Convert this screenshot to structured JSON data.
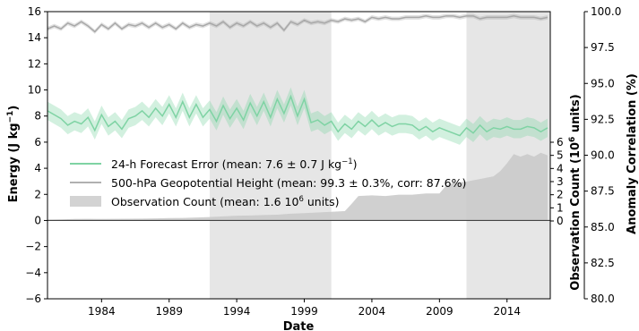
{
  "chart_data": {
    "type": "line",
    "xlabel": "Date",
    "ylabel_left": "Energy (J kg",
    "ylabel_left_sup": "−1",
    "ylabel_left_end": ")",
    "ylabel_right_corr": "Anomaly Correlation (%)",
    "ylabel_right_obs": "Observation Count (10",
    "ylabel_right_obs_sup": "6",
    "ylabel_right_obs_end": " units)",
    "xlim": [
      1980.0,
      2017.2
    ],
    "ylim_left": [
      -6,
      16
    ],
    "ylim_right_corr": [
      80,
      100
    ],
    "ylim_right_obs": [
      0,
      6
    ],
    "x_ticks": [
      1984,
      1989,
      1994,
      1999,
      2004,
      2009,
      2014
    ],
    "y_ticks_left": [
      -6,
      -4,
      -2,
      0,
      2,
      4,
      6,
      8,
      10,
      12,
      14,
      16
    ],
    "y_ticks_right_corr": [
      "80.0",
      "82.5",
      "85.0",
      "87.5",
      "90.0",
      "92.5",
      "95.0",
      "97.5",
      "100.0"
    ],
    "y_ticks_right_obs": [
      0,
      1,
      2,
      3,
      4,
      5,
      6
    ],
    "shaded_periods": [
      [
        1992.0,
        2001.0
      ],
      [
        2011.0,
        2017.2
      ]
    ],
    "zero_line": 0,
    "legend": {
      "placement": "center-left",
      "entries": [
        {
          "label": "24-h Forecast Error (mean: 7.6 ± 0.7 J kg",
          "sup": "−1",
          "end": ")",
          "color": "#7fd3a4"
        },
        {
          "label": "500-hPa Geopotential Height (mean: 99.3 ± 0.3%, corr: 87.6%)",
          "sup": "",
          "end": "",
          "color": "#b0b0b0"
        },
        {
          "label": "Observation Count (mean: 1.6 10",
          "sup": "6",
          "end": " units)",
          "color": "#d3d3d3"
        }
      ]
    },
    "series": [
      {
        "name": "24-h Forecast Error",
        "axis": "left",
        "color": "#7fd3a4",
        "x": [
          1980.0,
          1980.5,
          1981.0,
          1981.5,
          1982.0,
          1982.5,
          1983.0,
          1983.5,
          1984.0,
          1984.5,
          1985.0,
          1985.5,
          1986.0,
          1986.5,
          1987.0,
          1987.5,
          1988.0,
          1988.5,
          1989.0,
          1989.5,
          1990.0,
          1990.5,
          1991.0,
          1991.5,
          1992.0,
          1992.5,
          1993.0,
          1993.5,
          1994.0,
          1994.5,
          1995.0,
          1995.5,
          1996.0,
          1996.5,
          1997.0,
          1997.5,
          1998.0,
          1998.5,
          1999.0,
          1999.5,
          2000.0,
          2000.5,
          2001.0,
          2001.5,
          2002.0,
          2002.5,
          2003.0,
          2003.5,
          2004.0,
          2004.5,
          2005.0,
          2005.5,
          2006.0,
          2006.5,
          2007.0,
          2007.5,
          2008.0,
          2008.5,
          2009.0,
          2009.5,
          2010.0,
          2010.5,
          2011.0,
          2011.5,
          2012.0,
          2012.5,
          2013.0,
          2013.5,
          2014.0,
          2014.5,
          2015.0,
          2015.5,
          2016.0,
          2016.5,
          2017.0
        ],
        "y": [
          8.4,
          8.1,
          7.8,
          7.3,
          7.6,
          7.4,
          7.9,
          6.9,
          8.1,
          7.2,
          7.6,
          7.0,
          7.8,
          8.0,
          8.4,
          7.9,
          8.6,
          8.0,
          8.9,
          7.9,
          9.1,
          7.9,
          8.9,
          7.9,
          8.5,
          7.6,
          8.8,
          7.8,
          8.6,
          7.7,
          9.0,
          8.0,
          9.1,
          7.9,
          9.3,
          8.2,
          9.5,
          8.0,
          9.3,
          7.5,
          7.7,
          7.3,
          7.6,
          6.8,
          7.4,
          7.0,
          7.6,
          7.2,
          7.7,
          7.2,
          7.5,
          7.2,
          7.4,
          7.4,
          7.3,
          6.9,
          7.2,
          6.8,
          7.1,
          6.9,
          6.7,
          6.5,
          7.1,
          6.7,
          7.3,
          6.8,
          7.1,
          7.0,
          7.2,
          7.0,
          7.0,
          7.2,
          7.1,
          6.8,
          7.1
        ],
        "band": 0.7
      },
      {
        "name": "500-hPa Geopotential Height",
        "axis": "right_corr",
        "color": "#a8a8a8",
        "x": [
          1980.0,
          1980.5,
          1981.0,
          1981.5,
          1982.0,
          1982.5,
          1983.0,
          1983.5,
          1984.0,
          1984.5,
          1985.0,
          1985.5,
          1986.0,
          1986.5,
          1987.0,
          1987.5,
          1988.0,
          1988.5,
          1989.0,
          1989.5,
          1990.0,
          1990.5,
          1991.0,
          1991.5,
          1992.0,
          1992.5,
          1993.0,
          1993.5,
          1994.0,
          1994.5,
          1995.0,
          1995.5,
          1996.0,
          1996.5,
          1997.0,
          1997.5,
          1998.0,
          1998.5,
          1999.0,
          1999.5,
          2000.0,
          2000.5,
          2001.0,
          2001.5,
          2002.0,
          2002.5,
          2003.0,
          2003.5,
          2004.0,
          2004.5,
          2005.0,
          2005.5,
          2006.0,
          2006.5,
          2007.0,
          2007.5,
          2008.0,
          2008.5,
          2009.0,
          2009.5,
          2010.0,
          2010.5,
          2011.0,
          2011.5,
          2012.0,
          2012.5,
          2013.0,
          2013.5,
          2014.0,
          2014.5,
          2015.0,
          2015.5,
          2016.0,
          2016.5,
          2017.0
        ],
        "y": [
          98.8,
          99.0,
          98.8,
          99.2,
          99.0,
          99.3,
          99.0,
          98.6,
          99.1,
          98.8,
          99.2,
          98.8,
          99.1,
          99.0,
          99.2,
          98.9,
          99.2,
          98.9,
          99.1,
          98.8,
          99.2,
          98.9,
          99.1,
          99.0,
          99.2,
          99.0,
          99.3,
          98.9,
          99.2,
          99.0,
          99.3,
          99.0,
          99.2,
          98.9,
          99.2,
          98.7,
          99.3,
          99.1,
          99.4,
          99.2,
          99.3,
          99.2,
          99.4,
          99.3,
          99.5,
          99.4,
          99.5,
          99.3,
          99.6,
          99.5,
          99.6,
          99.5,
          99.5,
          99.6,
          99.6,
          99.6,
          99.7,
          99.6,
          99.6,
          99.7,
          99.7,
          99.6,
          99.7,
          99.7,
          99.5,
          99.6,
          99.6,
          99.6,
          99.6,
          99.7,
          99.6,
          99.6,
          99.6,
          99.5,
          99.6
        ],
        "band": 0.15
      },
      {
        "name": "Observation Count",
        "axis": "right_obs",
        "type": "area",
        "color": "#c8c8c8",
        "x": [
          1980.0,
          1981.0,
          1982.0,
          1983.0,
          1984.0,
          1985.0,
          1986.0,
          1987.0,
          1988.0,
          1989.0,
          1990.0,
          1991.0,
          1992.0,
          1993.0,
          1994.0,
          1995.0,
          1996.0,
          1997.0,
          1998.0,
          1999.0,
          2000.0,
          2001.0,
          2002.0,
          2002.5,
          2003.0,
          2004.0,
          2005.0,
          2006.0,
          2007.0,
          2008.0,
          2009.0,
          2009.5,
          2010.0,
          2011.0,
          2012.0,
          2013.0,
          2013.5,
          2014.0,
          2014.5,
          2015.0,
          2015.5,
          2016.0,
          2016.5,
          2017.0
        ],
        "y": [
          0.1,
          0.12,
          0.15,
          0.16,
          0.15,
          0.16,
          0.17,
          0.18,
          0.2,
          0.22,
          0.23,
          0.26,
          0.3,
          0.35,
          0.4,
          0.42,
          0.45,
          0.48,
          0.55,
          0.6,
          0.65,
          0.7,
          0.75,
          1.3,
          1.9,
          1.95,
          1.9,
          2.0,
          2.0,
          2.1,
          2.1,
          2.7,
          2.9,
          3.0,
          3.2,
          3.4,
          3.8,
          4.4,
          5.1,
          4.9,
          5.1,
          4.9,
          5.2,
          5.0
        ]
      }
    ]
  }
}
